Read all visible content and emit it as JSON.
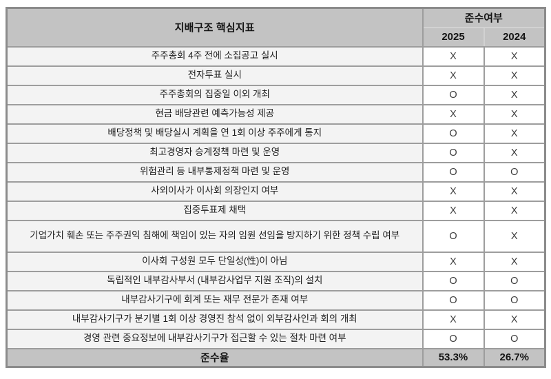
{
  "chart_data": {
    "type": "table",
    "title": "지배구조 핵심지표",
    "compliance_header": "준수여부",
    "year_columns": [
      "2025",
      "2024"
    ],
    "rows": [
      {
        "label": "주주총회 4주 전에 소집공고 실시",
        "values": [
          "X",
          "X"
        ]
      },
      {
        "label": "전자투표 실시",
        "values": [
          "X",
          "X"
        ]
      },
      {
        "label": "주주총회의 집중일 이외 개최",
        "values": [
          "O",
          "X"
        ]
      },
      {
        "label": "현금 배당관련 예측가능성 제공",
        "values": [
          "X",
          "X"
        ]
      },
      {
        "label": "배당정책 및 배당실시 계획을 연 1회 이상 주주에게 통지",
        "values": [
          "O",
          "X"
        ]
      },
      {
        "label": "최고경영자 승계정책 마련 및 운영",
        "values": [
          "O",
          "X"
        ]
      },
      {
        "label": "위험관리 등 내부통제정책 마련 및 운영",
        "values": [
          "O",
          "O"
        ]
      },
      {
        "label": "사외이사가 이사회 의장인지 여부",
        "values": [
          "X",
          "X"
        ]
      },
      {
        "label": "집중투표제 채택",
        "values": [
          "X",
          "X"
        ]
      },
      {
        "label": "기업가치 훼손 또는 주주권익 침해에 책임이 있는 자의 임원 선임을 방지하기 위한 정책 수립 여부",
        "values": [
          "O",
          "X"
        ]
      },
      {
        "label": "이사회 구성원 모두 단일성(性)이 아님",
        "values": [
          "X",
          "X"
        ]
      },
      {
        "label": "독립적인 내부감사부서 (내부감사업무 지원 조직)의 설치",
        "values": [
          "O",
          "O"
        ]
      },
      {
        "label": "내부감사기구에 회계 또는 재무 전문가 존재 여부",
        "values": [
          "O",
          "O"
        ]
      },
      {
        "label": "내부감사기구가 분기별 1회 이상 경영진 참석 없이 외부감사인과 회의 개최",
        "values": [
          "X",
          "X"
        ]
      },
      {
        "label": "경영 관련 중요정보에 내부감사기구가 접근할 수 있는 절차 마련 여부",
        "values": [
          "O",
          "O"
        ]
      }
    ],
    "footer": {
      "label": "준수율",
      "values": [
        "53.3%",
        "26.7%"
      ]
    }
  },
  "colors": {
    "header_bg": "#c3c3c3",
    "row_label_bg": "#f3f3f3",
    "value_bg": "#ffffff",
    "grid_border": "#9d9d9d",
    "outer_border": "#8b8b8b",
    "text": "#1c1c1c"
  }
}
